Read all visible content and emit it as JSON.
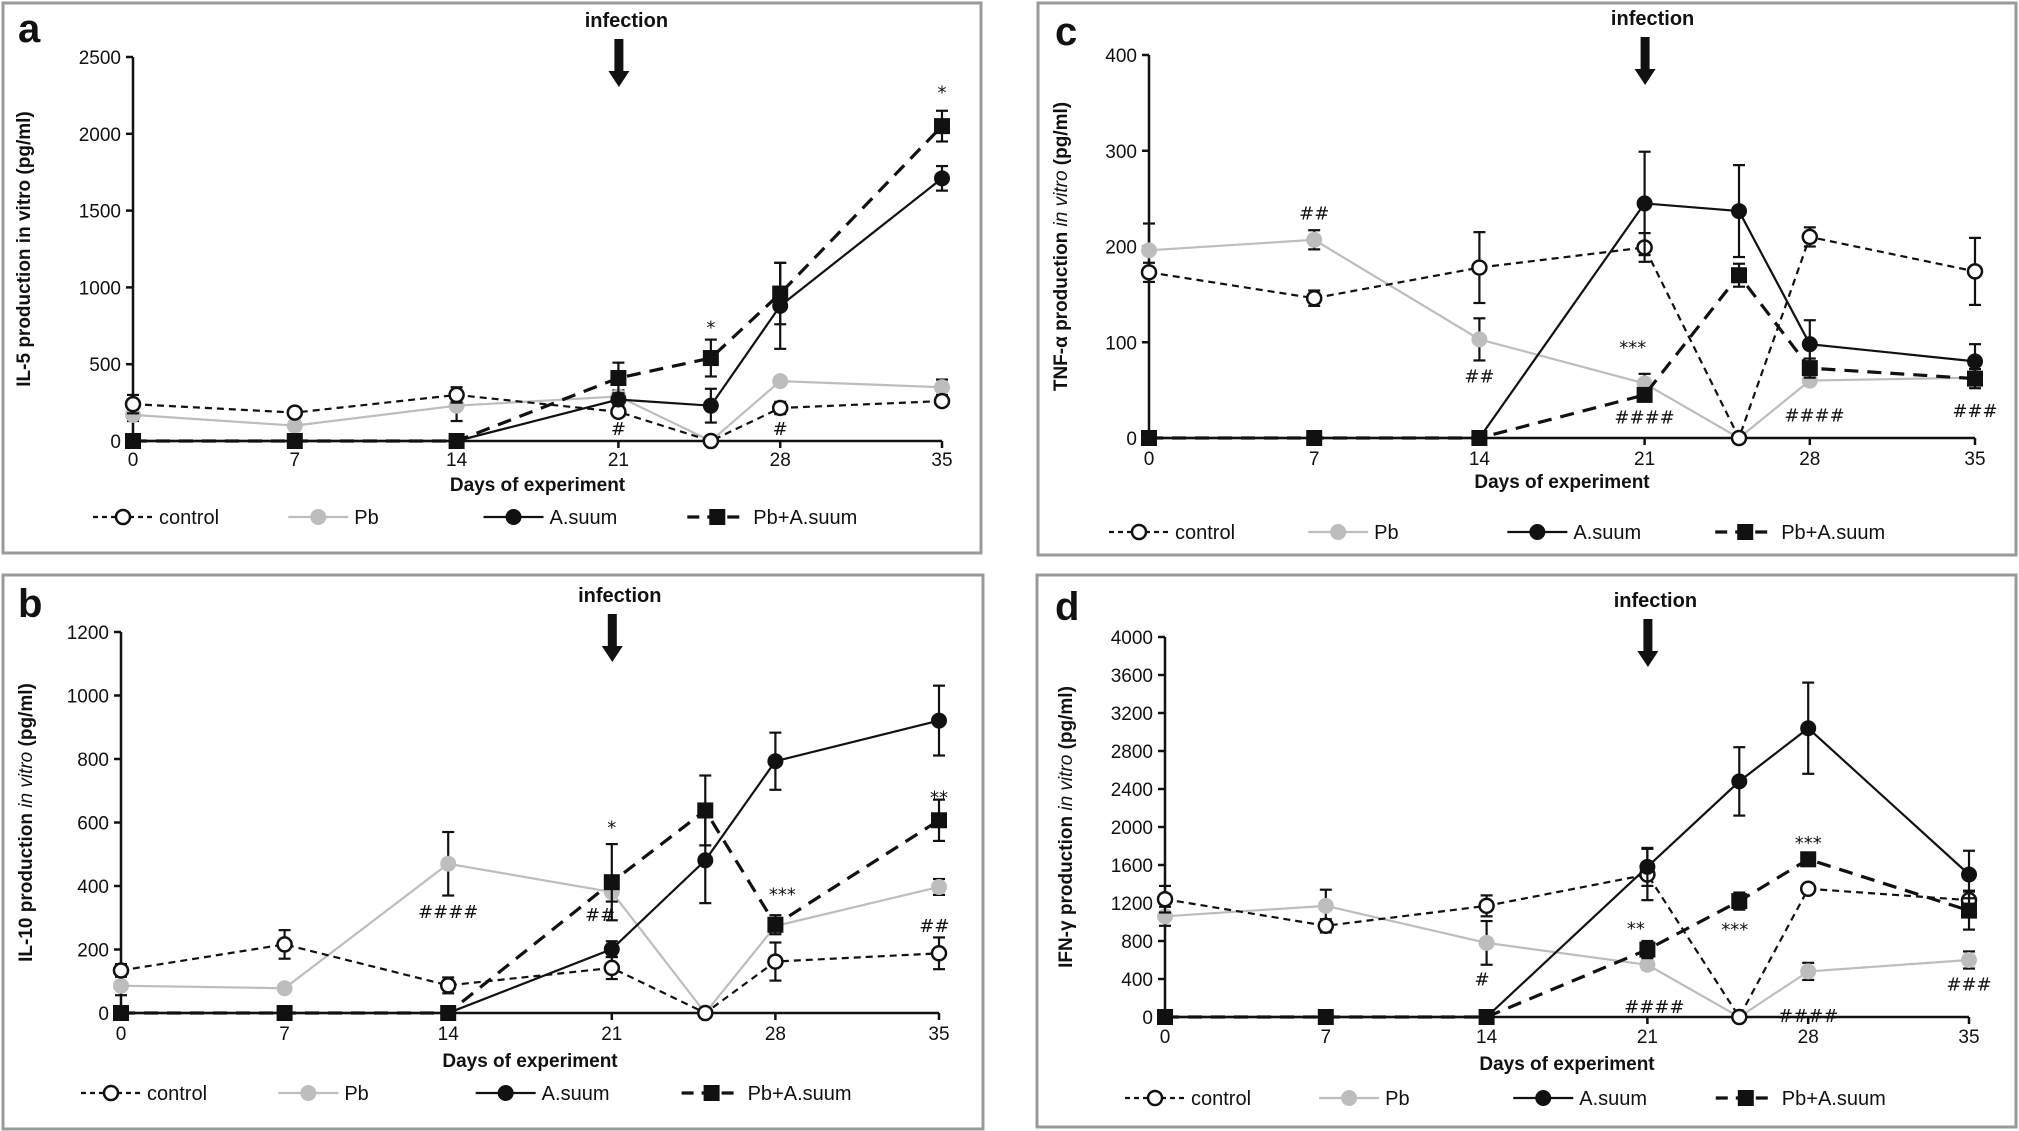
{
  "chart_data": [
    {
      "type": "line",
      "panel": "a",
      "title": "",
      "xlabel": "Days of experiment",
      "ylabel": "IL-5 production in vitro (pg/ml)",
      "ylabel_parts": [
        {
          "text": "IL-5 production in vitro (pg/ml)",
          "italic": false
        }
      ],
      "x_ticks": [
        0,
        7,
        14,
        21,
        28,
        35
      ],
      "y_ticks": [
        0,
        500,
        1000,
        1500,
        2000,
        2500
      ],
      "xlim": [
        0,
        35
      ],
      "ylim": [
        0,
        2500
      ],
      "grid": false,
      "legend_placement": "bottom",
      "x": [
        0,
        7,
        14,
        21,
        25,
        28,
        35
      ],
      "series": [
        {
          "name": "control",
          "values": [
            240,
            185,
            300,
            190,
            0,
            215,
            260
          ],
          "errors": [
            60,
            30,
            50,
            30,
            0,
            40,
            30
          ]
        },
        {
          "name": "Pb",
          "values": [
            170,
            100,
            230,
            290,
            0,
            390,
            350
          ],
          "errors": [
            40,
            30,
            100,
            40,
            0,
            20,
            50
          ]
        },
        {
          "name": "A.suum",
          "values": [
            0,
            0,
            0,
            270,
            230,
            880,
            1710
          ],
          "errors": [
            0,
            0,
            0,
            40,
            110,
            280,
            80
          ]
        },
        {
          "name": "Pb+A.suum",
          "values": [
            0,
            0,
            0,
            410,
            540,
            960,
            2050
          ],
          "errors": [
            0,
            0,
            0,
            100,
            120,
            200,
            100
          ]
        }
      ],
      "annotations": [
        {
          "text": "*",
          "x": 25,
          "y": 700
        },
        {
          "text": "*",
          "x": 35,
          "y": 2230
        },
        {
          "text": "#",
          "x": 21,
          "y": 40
        },
        {
          "text": "#",
          "x": 28,
          "y": 40
        }
      ],
      "infection": {
        "label": "infection",
        "day": 21
      }
    },
    {
      "type": "line",
      "panel": "b",
      "title": "",
      "xlabel": "Days of experiment",
      "ylabel": "IL-10 production in vitro (pg/ml)",
      "ylabel_parts": [
        {
          "text": "IL-10 production ",
          "italic": false
        },
        {
          "text": "in vitro",
          "italic": true
        },
        {
          "text": " (pg/ml)",
          "italic": false
        }
      ],
      "x_ticks": [
        0,
        7,
        14,
        21,
        28,
        35
      ],
      "y_ticks": [
        0,
        200,
        400,
        600,
        800,
        1000,
        1200
      ],
      "xlim": [
        0,
        35
      ],
      "ylim": [
        0,
        1200
      ],
      "grid": false,
      "legend_placement": "bottom",
      "x": [
        0,
        7,
        14,
        21,
        25,
        28,
        35
      ],
      "series": [
        {
          "name": "control",
          "values": [
            134,
            216,
            87,
            142,
            0,
            162,
            188
          ],
          "errors": [
            20,
            45,
            25,
            35,
            0,
            60,
            50
          ]
        },
        {
          "name": "Pb",
          "values": [
            86,
            78,
            470,
            381,
            0,
            274,
            397
          ],
          "errors": [
            30,
            10,
            100,
            30,
            0,
            20,
            25
          ]
        },
        {
          "name": "A.suum",
          "values": [
            0,
            0,
            0,
            201,
            481,
            793,
            921
          ],
          "errors": [
            0,
            0,
            0,
            25,
            135,
            90,
            110
          ]
        },
        {
          "name": "Pb+A.suum",
          "values": [
            0,
            0,
            0,
            412,
            638,
            278,
            607
          ],
          "errors": [
            0,
            0,
            0,
            120,
            110,
            30,
            65
          ]
        }
      ],
      "annotations": [
        {
          "text": "####",
          "x": 14,
          "y": 300
        },
        {
          "text": "*",
          "x": 21,
          "y": 565
        },
        {
          "text": "##",
          "x": 20.5,
          "y": 290
        },
        {
          "text": "***",
          "x": 28.3,
          "y": 355
        },
        {
          "text": "**",
          "x": 35,
          "y": 660
        },
        {
          "text": "##",
          "x": 34.8,
          "y": 255
        }
      ],
      "infection": {
        "label": "infection",
        "day": 21
      }
    },
    {
      "type": "line",
      "panel": "c",
      "title": "",
      "xlabel": "Days of experiment",
      "ylabel": "TNF-α production in vitro (pg/ml)",
      "ylabel_parts": [
        {
          "text": "TNF-α production ",
          "italic": false
        },
        {
          "text": "in vitro",
          "italic": true
        },
        {
          "text": " (pg/ml)",
          "italic": false
        }
      ],
      "x_ticks": [
        0,
        7,
        14,
        21,
        28,
        35
      ],
      "y_ticks": [
        0,
        100,
        200,
        300,
        400
      ],
      "xlim": [
        0,
        35
      ],
      "ylim": [
        0,
        400
      ],
      "grid": false,
      "legend_placement": "bottom",
      "x": [
        0,
        7,
        14,
        21,
        25,
        28,
        35
      ],
      "series": [
        {
          "name": "control",
          "values": [
            173,
            146,
            178,
            199,
            0,
            210,
            174
          ],
          "errors": [
            10,
            8,
            37,
            15,
            0,
            10,
            35
          ]
        },
        {
          "name": "Pb",
          "values": [
            196,
            207,
            103,
            57,
            0,
            60,
            63
          ],
          "errors": [
            28,
            10,
            22,
            10,
            0,
            4,
            4
          ]
        },
        {
          "name": "A.suum",
          "values": [
            0,
            0,
            0,
            245,
            237,
            98,
            80
          ],
          "errors": [
            0,
            0,
            0,
            54,
            48,
            25,
            18
          ]
        },
        {
          "name": "Pb+A.suum",
          "values": [
            0,
            0,
            0,
            45,
            170,
            73,
            62
          ],
          "errors": [
            0,
            0,
            0,
            5,
            12,
            10,
            10
          ]
        }
      ],
      "annotations": [
        {
          "text": "##",
          "x": 7,
          "y": 228
        },
        {
          "text": "##",
          "x": 14,
          "y": 58
        },
        {
          "text": "***",
          "x": 20.5,
          "y": 88
        },
        {
          "text": "####",
          "x": 21,
          "y": 15
        },
        {
          "text": "####",
          "x": 28.2,
          "y": 17
        },
        {
          "text": "###",
          "x": 35,
          "y": 22
        }
      ],
      "infection": {
        "label": "infection",
        "day": 21
      }
    },
    {
      "type": "line",
      "panel": "d",
      "title": "",
      "xlabel": "Days of experiment",
      "ylabel": "IFN-γ production in vitro (pg/ml)",
      "ylabel_parts": [
        {
          "text": "IFN-γ production ",
          "italic": false
        },
        {
          "text": "in vitro",
          "italic": true
        },
        {
          "text": " (pg/ml)",
          "italic": false
        }
      ],
      "x_ticks": [
        0,
        7,
        14,
        21,
        28,
        35
      ],
      "y_ticks": [
        0,
        400,
        800,
        1200,
        1600,
        2000,
        2400,
        2800,
        3200,
        3600,
        4000
      ],
      "xlim": [
        0,
        35
      ],
      "ylim": [
        0,
        4000
      ],
      "grid": false,
      "legend_placement": "bottom",
      "x": [
        0,
        7,
        14,
        21,
        25,
        28,
        35
      ],
      "series": [
        {
          "name": "control",
          "values": [
            1240,
            960,
            1170,
            1500,
            0,
            1350,
            1230
          ],
          "errors": [
            140,
            70,
            110,
            270,
            0,
            40,
            100
          ]
        },
        {
          "name": "Pb",
          "values": [
            1060,
            1170,
            780,
            550,
            0,
            480,
            600
          ],
          "errors": [
            100,
            170,
            230,
            50,
            0,
            90,
            90
          ]
        },
        {
          "name": "A.suum",
          "values": [
            0,
            0,
            0,
            1580,
            2480,
            3040,
            1500
          ],
          "errors": [
            0,
            0,
            0,
            200,
            360,
            480,
            250
          ]
        },
        {
          "name": "Pb+A.suum",
          "values": [
            0,
            0,
            0,
            710,
            1220,
            1660,
            1120
          ],
          "errors": [
            0,
            0,
            0,
            90,
            90,
            70,
            200
          ]
        }
      ],
      "annotations": [
        {
          "text": "#",
          "x": 13.8,
          "y": 330
        },
        {
          "text": "**",
          "x": 20.5,
          "y": 870
        },
        {
          "text": "####",
          "x": 21.3,
          "y": 40
        },
        {
          "text": "***",
          "x": 24.8,
          "y": 860
        },
        {
          "text": "***",
          "x": 28,
          "y": 1770
        },
        {
          "text": "####",
          "x": 28,
          "y": -50
        },
        {
          "text": "###",
          "x": 35,
          "y": 280
        }
      ],
      "infection": {
        "label": "infection",
        "day": 21
      }
    }
  ],
  "legend": {
    "entries": [
      {
        "name": "control",
        "label": "control",
        "color": "#111111",
        "dash": "dotted",
        "marker": "open-circle"
      },
      {
        "name": "Pb",
        "label": "Pb",
        "color": "#bdbdbd",
        "dash": "solid",
        "marker": "filled-circle"
      },
      {
        "name": "A.suum",
        "label": "A.suum",
        "color": "#111111",
        "dash": "solid",
        "marker": "filled-circle"
      },
      {
        "name": "Pb+A.suum",
        "label": "Pb+A.suum",
        "color": "#111111",
        "dash": "long-dash",
        "marker": "filled-square"
      }
    ]
  },
  "colors": {
    "black": "#111111",
    "gray": "#bdbdbd",
    "panel_border": "#9a9a9a"
  },
  "panel_letters": [
    "a",
    "b",
    "c",
    "d"
  ]
}
